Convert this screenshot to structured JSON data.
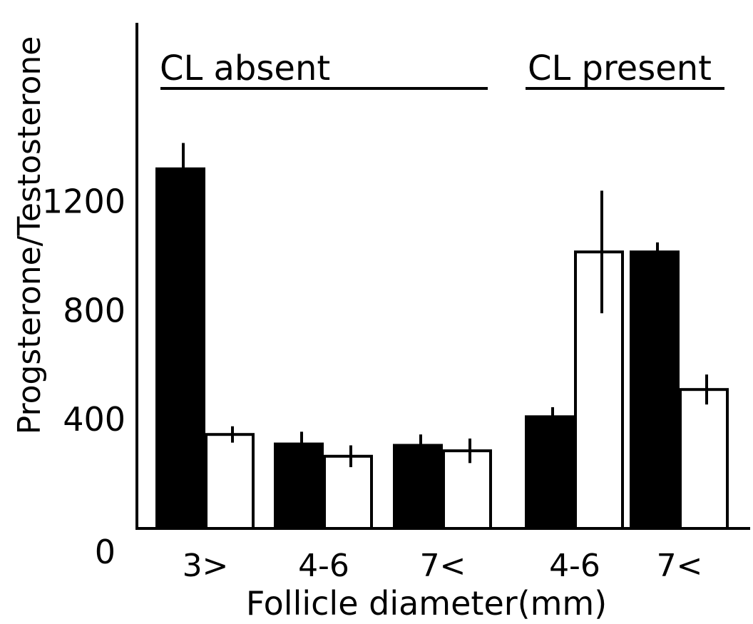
{
  "chart_data": {
    "type": "bar",
    "title": "",
    "xlabel": "Follicle diameter(mm)",
    "ylabel": "Progsterone/Testosterone",
    "ylim": [
      0,
      1200
    ],
    "yticks": [
      {
        "value": 0,
        "label": "0"
      },
      {
        "value": 400,
        "label": "400"
      },
      {
        "value": 800,
        "label": "800"
      },
      {
        "value": 1200,
        "label": "1200"
      }
    ],
    "groups": [
      {
        "label": "CL absent",
        "categories": [
          "3>",
          "4-6",
          "7<"
        ]
      },
      {
        "label": "CL present",
        "categories": [
          "4-6",
          "7<"
        ]
      }
    ],
    "categories": [
      "3>",
      "4-6",
      "7<",
      "4-6",
      "7<"
    ],
    "series": [
      {
        "values": [
          1320,
          310,
          305,
          410,
          1015
        ],
        "errors": [
          95,
          45,
          40,
          35,
          35
        ],
        "color": "#000000"
      },
      {
        "values": [
          345,
          265,
          285,
          1015,
          510
        ],
        "errors": [
          30,
          40,
          45,
          225,
          55
        ],
        "color": "#ffffff"
      }
    ],
    "grid": false,
    "legend": "none"
  }
}
